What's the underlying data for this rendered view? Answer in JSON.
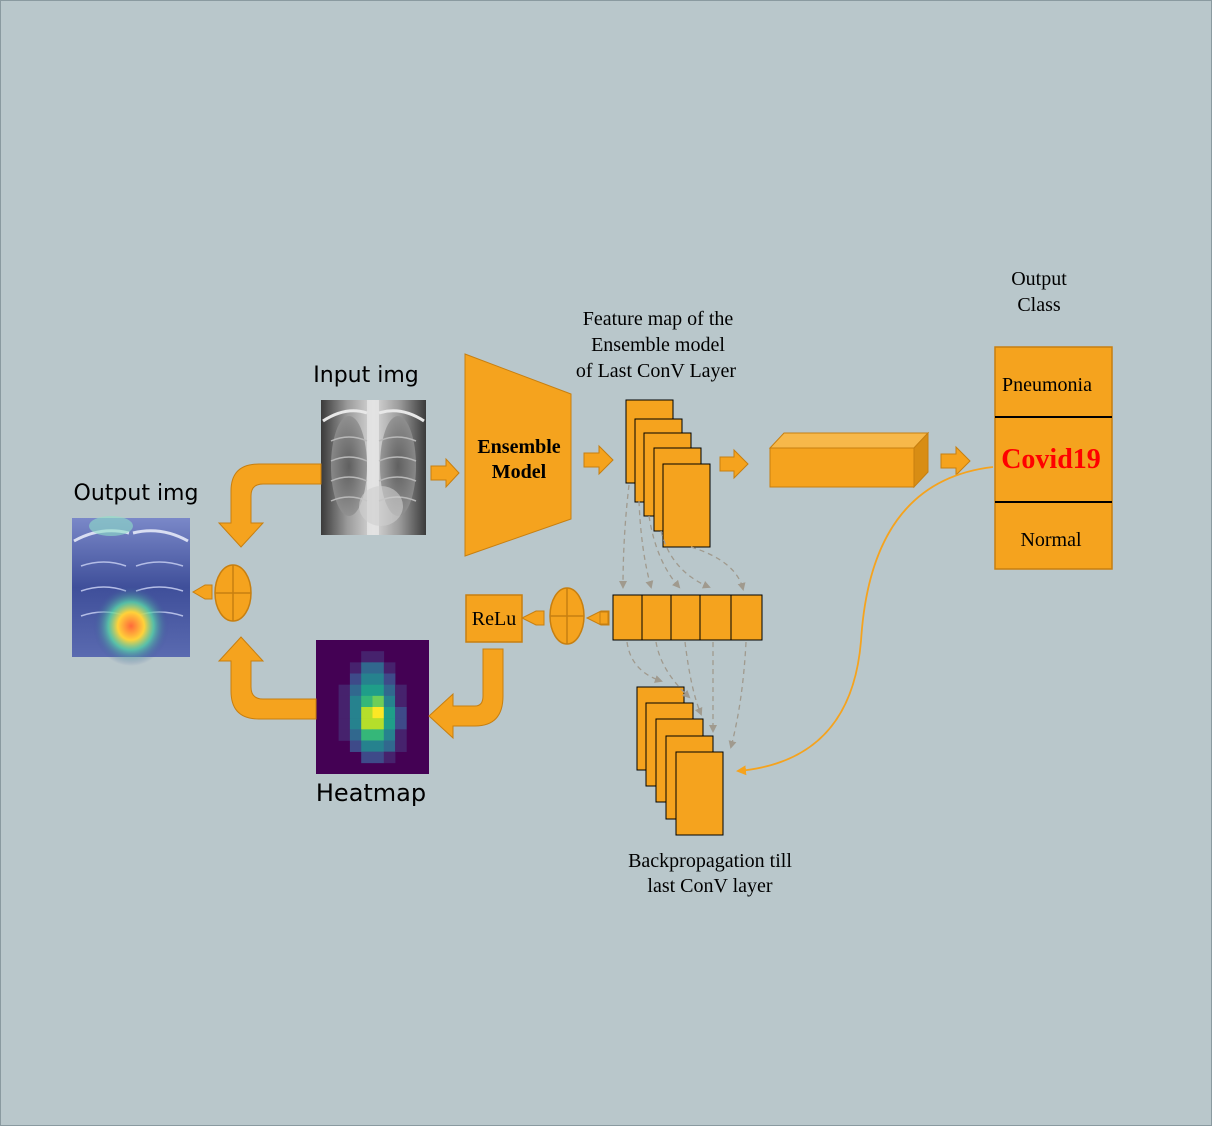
{
  "labels": {
    "input_img": "Input img",
    "output_img": "Output img",
    "heatmap": "Heatmap",
    "feature_map": [
      "Feature map of the",
      "Ensemble model",
      "of Last ConV Layer"
    ],
    "output_class": [
      "Output",
      "Class"
    ],
    "backprop": [
      "Backpropagation till",
      "last ConV layer"
    ]
  },
  "ensemble": {
    "line1": "Ensemble",
    "line2": "Model"
  },
  "relu": "ReLu",
  "classes": [
    {
      "label": "Pneumonia",
      "highlight": false
    },
    {
      "label": "Covid19",
      "highlight": true
    },
    {
      "label": "Normal",
      "highlight": false
    }
  ],
  "colors": {
    "orange": "#f5a31e",
    "orange_dark": "#c77f10",
    "highlight_text": "#ff0000",
    "dashed": "#a09a8e",
    "background": "#b9c7cb"
  },
  "heatmap_grid": [
    [
      0,
      0,
      0,
      0,
      0,
      0,
      0,
      0,
      0,
      0
    ],
    [
      0,
      0,
      0,
      0,
      1,
      1,
      0,
      0,
      0,
      0
    ],
    [
      0,
      0,
      0,
      1,
      3,
      3,
      1,
      0,
      0,
      0
    ],
    [
      0,
      0,
      0,
      2,
      4,
      4,
      2,
      0,
      0,
      0
    ],
    [
      0,
      0,
      1,
      3,
      5,
      5,
      3,
      1,
      0,
      0
    ],
    [
      0,
      0,
      1,
      4,
      6,
      7,
      4,
      1,
      0,
      0
    ],
    [
      0,
      0,
      1,
      4,
      8,
      9,
      5,
      2,
      0,
      0
    ],
    [
      0,
      0,
      1,
      4,
      8,
      8,
      5,
      2,
      0,
      0
    ],
    [
      0,
      0,
      1,
      3,
      6,
      6,
      4,
      1,
      0,
      0
    ],
    [
      0,
      0,
      0,
      2,
      4,
      4,
      3,
      1,
      0,
      0
    ],
    [
      0,
      0,
      0,
      0,
      2,
      2,
      1,
      0,
      0,
      0
    ],
    [
      0,
      0,
      0,
      0,
      0,
      0,
      0,
      0,
      0,
      0
    ]
  ]
}
